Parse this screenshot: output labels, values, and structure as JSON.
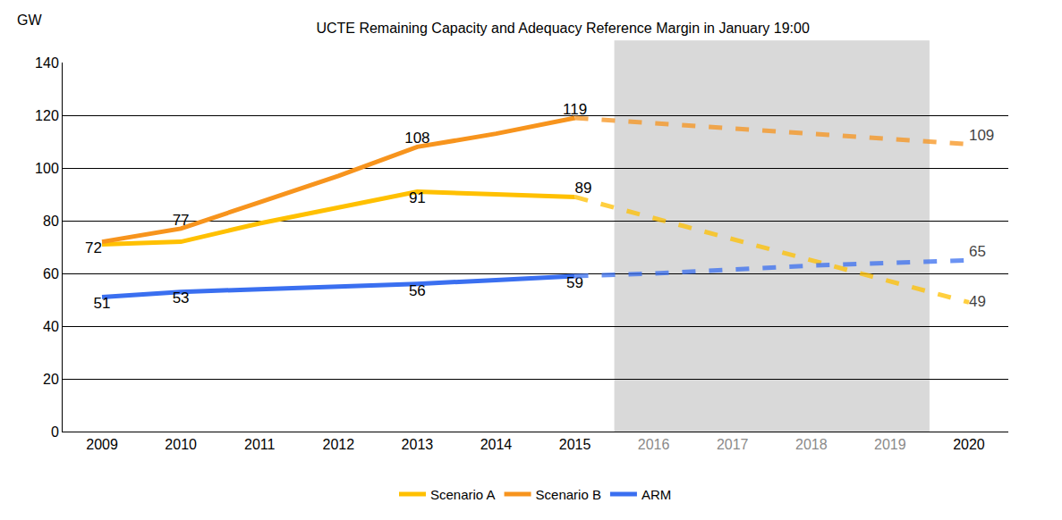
{
  "chart_data": {
    "type": "line",
    "title": "UCTE Remaining Capacity and Adequacy Reference Margin in January 19:00",
    "ylabel": "GW",
    "categories": [
      "2009",
      "2010",
      "2011",
      "2012",
      "2013",
      "2014",
      "2015",
      "2016",
      "2017",
      "2018",
      "2019",
      "2020"
    ],
    "ylim": [
      0,
      140
    ],
    "yticks": [
      0,
      20,
      40,
      60,
      80,
      100,
      120,
      140
    ],
    "grid": true,
    "legend": "bottom",
    "data_labels": true,
    "series": [
      {
        "name": "Scenario A",
        "color": "#FFC000",
        "line_style": "solid",
        "values": [
          71,
          72,
          79,
          85,
          91,
          90,
          89,
          null,
          null,
          null,
          null,
          null
        ],
        "value_labels": [
          null,
          null,
          null,
          null,
          "91",
          null,
          "89",
          null,
          null,
          null,
          null,
          null
        ]
      },
      {
        "name": "Scenario A",
        "color": "#FFC000",
        "line_style": "dashed",
        "values": [
          null,
          null,
          null,
          null,
          null,
          null,
          89,
          81,
          73,
          65,
          57,
          49
        ],
        "value_labels": [
          null,
          null,
          null,
          null,
          null,
          null,
          null,
          null,
          null,
          null,
          null,
          "49"
        ]
      },
      {
        "name": "Scenario B",
        "color": "#F7941D",
        "line_style": "solid",
        "values": [
          72,
          77,
          87,
          97,
          108,
          113,
          119,
          null,
          null,
          null,
          null,
          null
        ],
        "value_labels": [
          "72",
          "77",
          null,
          null,
          "108",
          null,
          "119",
          null,
          null,
          null,
          null,
          null
        ]
      },
      {
        "name": "Scenario B",
        "color": "#F7941D",
        "line_style": "dashed",
        "values": [
          null,
          null,
          null,
          null,
          null,
          null,
          119,
          117,
          115,
          113,
          111,
          109
        ],
        "value_labels": [
          null,
          null,
          null,
          null,
          null,
          null,
          null,
          null,
          null,
          null,
          null,
          "109"
        ]
      },
      {
        "name": "ARM",
        "color": "#3A6FF0",
        "line_style": "solid",
        "values": [
          51,
          53,
          54,
          55,
          56,
          57.5,
          59,
          null,
          null,
          null,
          null,
          null
        ],
        "value_labels": [
          "51",
          "53",
          null,
          null,
          "56",
          null,
          "59",
          null,
          null,
          null,
          null,
          null
        ]
      },
      {
        "name": "ARM",
        "color": "#3A6FF0",
        "line_style": "dashed",
        "values": [
          null,
          null,
          null,
          null,
          null,
          null,
          59,
          60,
          61.5,
          63,
          64,
          65
        ],
        "value_labels": [
          null,
          null,
          null,
          null,
          null,
          null,
          null,
          null,
          null,
          null,
          null,
          "65"
        ]
      }
    ]
  }
}
